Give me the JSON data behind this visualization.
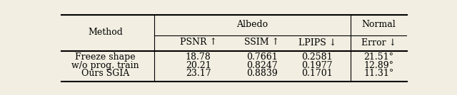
{
  "col_headers_top": [
    "",
    "Albedo",
    "Normal"
  ],
  "col_headers_bot": [
    "Method",
    "PSNR ↑",
    "SSIM ↑",
    "LPIPS ↓",
    "Normal\nError ↓"
  ],
  "header_line1": [
    "",
    "Albedo",
    "",
    "",
    "Normal"
  ],
  "header_line2": [
    "Method",
    "PSNR ↑",
    "SSIM ↑",
    "LPIPS ↓",
    "Error ↓"
  ],
  "rows": [
    [
      "Freeze shape",
      "18.78",
      "0.7661",
      "0.2581",
      "21.51°"
    ],
    [
      "w/o prog. train",
      "20.21",
      "0.8247",
      "0.1977",
      "12.89°"
    ],
    [
      "Ours SGIA",
      "23.17",
      "0.8839",
      "0.1701",
      "11.31°"
    ]
  ],
  "background_color": "#f2efe2",
  "text_color": "#000000",
  "font_size": 9.0
}
